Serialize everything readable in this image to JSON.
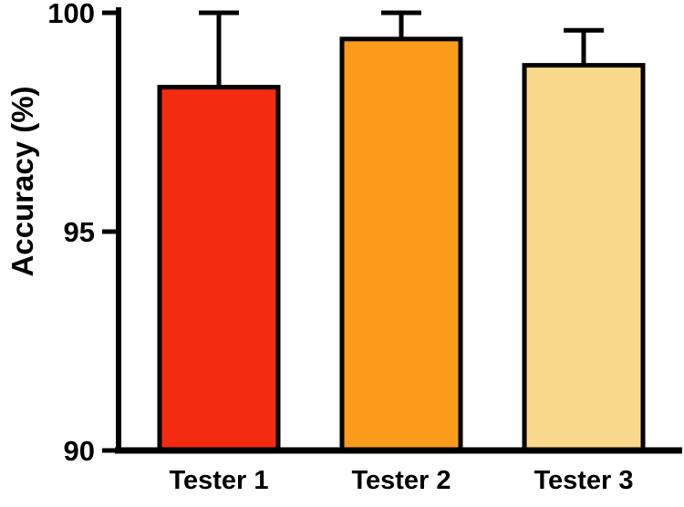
{
  "chart_data": {
    "type": "bar",
    "title": "",
    "xlabel": "",
    "ylabel": "Accuracy (%)",
    "categories": [
      "Tester 1",
      "Tester 2",
      "Tester 3"
    ],
    "values": [
      98.3,
      99.4,
      98.8
    ],
    "errors_plus": [
      1.7,
      0.6,
      0.8
    ],
    "bar_colors": [
      "#F32B10",
      "#FB9B1C",
      "#FAD98C"
    ],
    "axis_color": "#000000",
    "ylim": [
      90,
      100
    ],
    "yticks": [
      90,
      95,
      100
    ],
    "grid": "off",
    "legend": "none",
    "error_bar_direction": "up"
  }
}
